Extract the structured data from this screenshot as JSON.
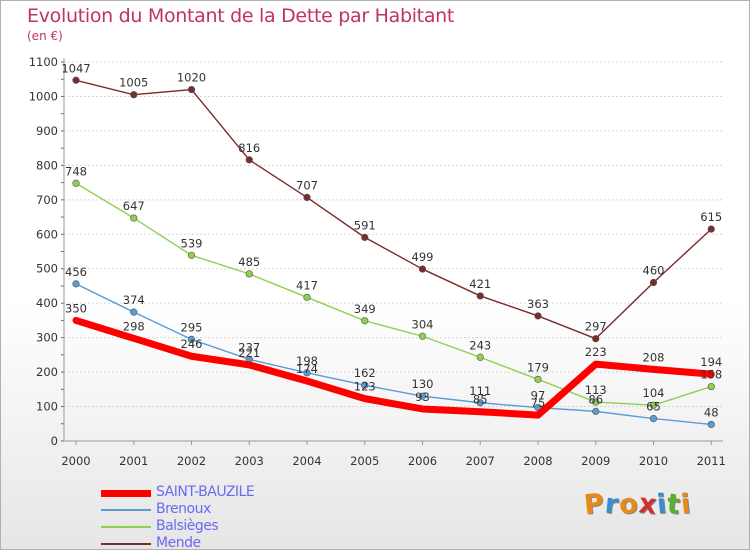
{
  "title": "Evolution du Montant de la Dette par Habitant",
  "subtitle": "(en €)",
  "logo": {
    "text": "Proxiti",
    "letter_colors": [
      "#e88a1a",
      "#3a8fd0",
      "#e88a1a",
      "#d03030",
      "#3a8fd0",
      "#5ab030",
      "#e88a1a"
    ]
  },
  "chart_data": {
    "type": "line",
    "title": "Evolution du Montant de la Dette par Habitant",
    "ylabel": "(en €)",
    "xlabel": "",
    "x": [
      "2000",
      "2001",
      "2002",
      "2003",
      "2004",
      "2005",
      "2006",
      "2007",
      "2008",
      "2009",
      "2010",
      "2011"
    ],
    "ylim": [
      0,
      1100
    ],
    "yticks": [
      "0",
      "100",
      "200",
      "300",
      "400",
      "500",
      "600",
      "700",
      "800",
      "900",
      "1000",
      "1100"
    ],
    "grid": "horizontal",
    "legend_position": "bottom-left",
    "series": [
      {
        "name": "SAINT-BAUZILE",
        "color": "#ff0000",
        "values": [
          350,
          298,
          246,
          221,
          174,
          123,
          93,
          85,
          75,
          223,
          208,
          194
        ],
        "labels": [
          "350",
          "298",
          "246",
          "221",
          "174",
          "123",
          "93",
          "85",
          "75",
          "223",
          "208",
          "194"
        ]
      },
      {
        "name": "Brenoux",
        "color": "#5b9bd5",
        "values": [
          456,
          374,
          295,
          237,
          198,
          162,
          130,
          111,
          97,
          86,
          65,
          48
        ],
        "labels": [
          "456",
          "374",
          "295",
          "237",
          "198",
          "162",
          "130",
          "111",
          "97",
          "86",
          "65",
          "48"
        ]
      },
      {
        "name": "Balsièges",
        "color": "#90d050",
        "values": [
          748,
          647,
          539,
          485,
          417,
          349,
          304,
          243,
          179,
          113,
          104,
          158
        ],
        "labels": [
          "748",
          "647",
          "539",
          "485",
          "417",
          "349",
          "304",
          "243",
          "179",
          "113",
          "104",
          "158"
        ]
      },
      {
        "name": "Mende",
        "color": "#7b2b2b",
        "values": [
          1047,
          1005,
          1020,
          816,
          707,
          591,
          499,
          421,
          363,
          297,
          460,
          615
        ],
        "labels": [
          "1047",
          "1005",
          "1020",
          "816",
          "707",
          "591",
          "499",
          "421",
          "363",
          "297",
          "460",
          "615"
        ]
      }
    ]
  }
}
